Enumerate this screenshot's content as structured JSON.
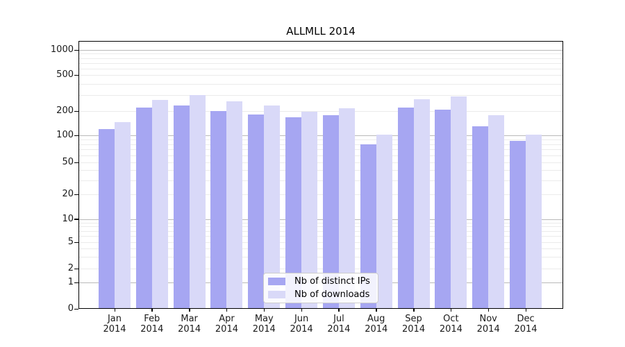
{
  "chart_data": {
    "type": "bar",
    "title": "ALLMLL 2014",
    "categories": [
      "Jan 2014",
      "Feb 2014",
      "Mar 2014",
      "Apr 2014",
      "May 2014",
      "Jun 2014",
      "Jul 2014",
      "Aug 2014",
      "Sep 2014",
      "Oct 2014",
      "Nov 2014",
      "Dec 2014"
    ],
    "series": [
      {
        "name": "Nb of distinct IPs",
        "color": "#a6a6f2",
        "values": [
          120,
          220,
          231,
          200,
          182,
          166,
          178,
          80,
          220,
          208,
          130,
          86
        ]
      },
      {
        "name": "Nb of downloads",
        "color": "#d9d9f8",
        "values": [
          146,
          265,
          298,
          256,
          232,
          197,
          215,
          103,
          268,
          290,
          179,
          103
        ]
      }
    ],
    "y_axis": {
      "scale": "symlog",
      "tick_labels": [
        "1000",
        "500",
        "200",
        "100",
        "50",
        "20",
        "10",
        "5",
        "2",
        "1",
        "0"
      ],
      "tick_values": [
        1000,
        500,
        200,
        100,
        50,
        20,
        10,
        5,
        2,
        1,
        0
      ],
      "range": [
        0,
        1150
      ]
    },
    "legend": {
      "position": "bottom-center",
      "entries": [
        "Nb of distinct IPs",
        "Nb of downloads"
      ]
    },
    "grid": true
  },
  "colors": {
    "grid_major": "#b9b9b9",
    "grid_minor": "#ebebeb",
    "spine": "#000000",
    "text": "#1a1a1a",
    "legend_border": "#cccccc",
    "legend_bg": "rgba(255,255,255,0.85)"
  }
}
